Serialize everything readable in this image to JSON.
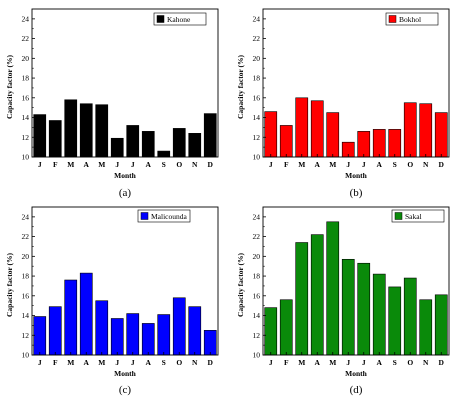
{
  "chart_data": [
    {
      "type": "bar",
      "panel_label": "(a)",
      "categories": [
        "J",
        "F",
        "M",
        "A",
        "M",
        "J",
        "J",
        "A",
        "S",
        "O",
        "N",
        "D"
      ],
      "series": [
        {
          "name": "Kahone",
          "values": [
            14.3,
            13.7,
            15.8,
            15.4,
            15.3,
            11.9,
            13.2,
            12.6,
            10.6,
            12.9,
            12.4,
            14.4
          ]
        }
      ],
      "color": "#000000",
      "xlabel": "Month",
      "ylabel": "Capacity factor (%)",
      "ylim": [
        10,
        25
      ],
      "yticks": [
        10,
        12,
        14,
        16,
        18,
        20,
        22,
        24
      ],
      "legend": "top-right"
    },
    {
      "type": "bar",
      "panel_label": "(b)",
      "categories": [
        "J",
        "F",
        "M",
        "A",
        "M",
        "J",
        "J",
        "A",
        "S",
        "O",
        "N",
        "D"
      ],
      "series": [
        {
          "name": "Bokhol",
          "values": [
            14.6,
            13.2,
            16.0,
            15.7,
            14.5,
            11.5,
            12.6,
            12.8,
            12.8,
            15.5,
            15.4,
            14.5
          ]
        }
      ],
      "color": "#ff0000",
      "xlabel": "Month",
      "ylabel": "Capacity factor (%)",
      "ylim": [
        10,
        25
      ],
      "yticks": [
        10,
        12,
        14,
        16,
        18,
        20,
        22,
        24
      ],
      "legend": "top-right"
    },
    {
      "type": "bar",
      "panel_label": "(c)",
      "categories": [
        "J",
        "F",
        "M",
        "A",
        "M",
        "J",
        "J",
        "A",
        "S",
        "O",
        "N",
        "D"
      ],
      "series": [
        {
          "name": "Malicounda",
          "values": [
            13.9,
            14.9,
            17.6,
            18.3,
            15.5,
            13.7,
            14.2,
            13.2,
            14.1,
            15.8,
            14.9,
            12.5
          ]
        }
      ],
      "color": "#0000ff",
      "xlabel": "Month",
      "ylabel": "Capacity factor (%)",
      "ylim": [
        10,
        25
      ],
      "yticks": [
        10,
        12,
        14,
        16,
        18,
        20,
        22,
        24
      ],
      "legend": "top-left"
    },
    {
      "type": "bar",
      "panel_label": "(d)",
      "categories": [
        "J",
        "F",
        "M",
        "A",
        "M",
        "J",
        "J",
        "A",
        "S",
        "O",
        "N",
        "D"
      ],
      "series": [
        {
          "name": "Sakal",
          "values": [
            14.8,
            15.6,
            21.4,
            22.2,
            23.5,
            19.7,
            19.3,
            18.2,
            16.9,
            17.8,
            15.6,
            16.1
          ]
        }
      ],
      "color": "#0a8a0a",
      "xlabel": "Month",
      "ylabel": "Capacity factor (%)",
      "ylim": [
        10,
        25
      ],
      "yticks": [
        10,
        12,
        14,
        16,
        18,
        20,
        22,
        24
      ],
      "legend": "top-right"
    }
  ]
}
